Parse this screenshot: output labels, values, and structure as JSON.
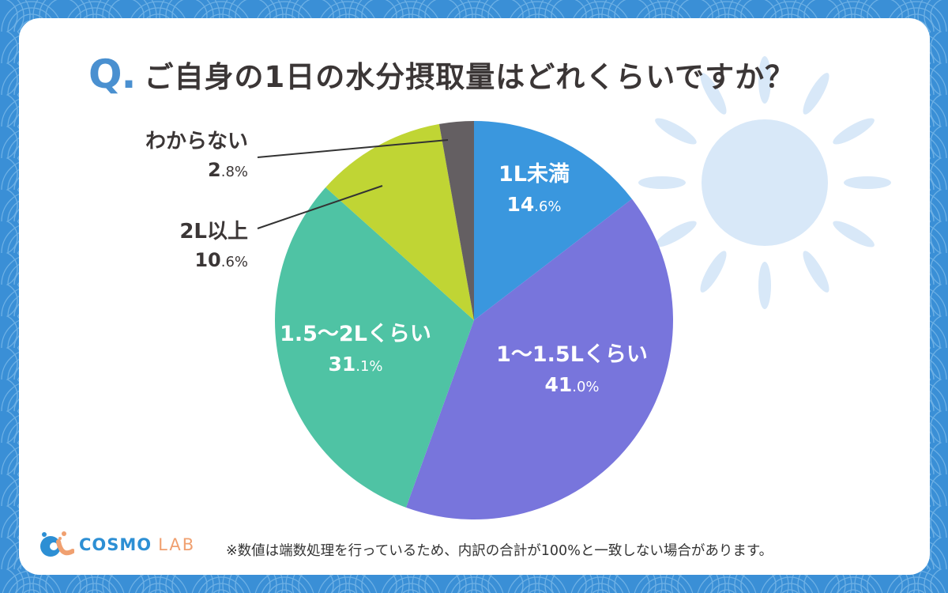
{
  "header": {
    "q_mark": "Q",
    "q_dot": ".",
    "title": "ご自身の1日の水分摂取量はどれくらいですか？"
  },
  "colors": {
    "background": "#3a8fd6",
    "card": "#ffffff",
    "q_accent": "#4a90d0",
    "text": "#3b3636",
    "sun": "#d8e8f8",
    "slice_1": "#3a97de",
    "slice_2": "#7875dc",
    "slice_3": "#4fc3a4",
    "slice_4": "#c0d534",
    "slice_5": "#645f62"
  },
  "labels": {
    "s1_name": "1L未満",
    "s1_int": "14",
    "s1_dec": ".6%",
    "s2_name": "1〜1.5Lくらい",
    "s2_int": "41",
    "s2_dec": ".0%",
    "s3_name": "1.5〜2Lくらい",
    "s3_int": "31",
    "s3_dec": ".1%",
    "s4_name": "2L以上",
    "s4_int": "10",
    "s4_dec": ".6%",
    "s5_name": "わからない",
    "s5_int": "2",
    "s5_dec": ".8%"
  },
  "footer": {
    "note": "※数値は端数処理を行っているため、内訳の合計が100%と一致しない場合があります。",
    "logo_cosmo": "COSMO",
    "logo_lab": "LAB"
  },
  "chart_data": {
    "type": "pie",
    "title": "ご自身の1日の水分摂取量はどれくらいですか？",
    "categories": [
      "1L未満",
      "1〜1.5Lくらい",
      "1.5〜2Lくらい",
      "2L以上",
      "わからない"
    ],
    "values": [
      14.6,
      41.0,
      31.1,
      10.6,
      2.8
    ],
    "unit": "%",
    "colors": [
      "#3a97de",
      "#7875dc",
      "#4fc3a4",
      "#c0d534",
      "#645f62"
    ],
    "start_angle": "12 o'clock",
    "direction": "clockwise",
    "annotations": [
      "※数値は端数処理を行っているため、内訳の合計が100%と一致しない場合があります。"
    ]
  }
}
